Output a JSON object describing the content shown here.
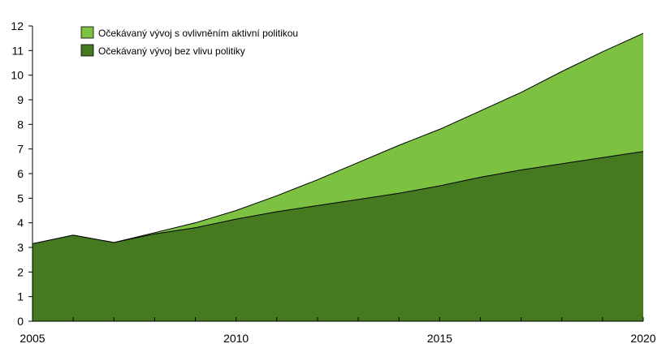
{
  "chart_data": {
    "type": "area",
    "stacked": false,
    "x": [
      2005,
      2006,
      2007,
      2008,
      2009,
      2010,
      2011,
      2012,
      2013,
      2014,
      2015,
      2016,
      2017,
      2018,
      2019,
      2020
    ],
    "series": [
      {
        "name": "Očekávaný vývoj s ovlivněním aktivní politikou",
        "color": "#7dc142",
        "values": [
          3.15,
          3.5,
          3.2,
          3.6,
          4.0,
          4.5,
          5.1,
          5.75,
          6.45,
          7.15,
          7.8,
          8.55,
          9.3,
          10.15,
          10.95,
          11.7
        ]
      },
      {
        "name": "Očekávaný vývoj bez vlivu politiky",
        "color": "#457a20",
        "values": [
          3.15,
          3.5,
          3.2,
          3.55,
          3.8,
          4.15,
          4.45,
          4.7,
          4.95,
          5.2,
          5.5,
          5.85,
          6.15,
          6.4,
          6.65,
          6.9
        ]
      }
    ],
    "xlim": [
      2005,
      2020
    ],
    "ylim": [
      0,
      12
    ],
    "x_ticks": [
      "2005",
      "2010",
      "2015",
      "2020"
    ],
    "y_ticks": [
      "0",
      "1",
      "2",
      "3",
      "4",
      "5",
      "6",
      "7",
      "8",
      "9",
      "10",
      "11",
      "12"
    ],
    "title": "",
    "xlabel": "",
    "ylabel": "",
    "grid": false,
    "legend_position": "top-left"
  }
}
